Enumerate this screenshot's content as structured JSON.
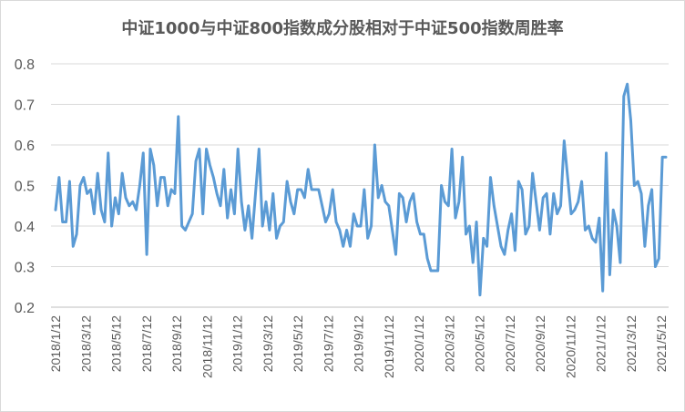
{
  "chart_data": {
    "type": "line",
    "title": "中证1000与中证800指数成分股相对于中证500指数周胜率",
    "xlabel": "",
    "ylabel": "",
    "ylim": [
      0.2,
      0.8
    ],
    "yticks": [
      "0.2",
      "0.3",
      "0.4",
      "0.5",
      "0.6",
      "0.7",
      "0.8"
    ],
    "grid": true,
    "legend": "none",
    "line_color": "#5b9bd5",
    "x_tick_labels": [
      "2018/1/12",
      "2018/3/12",
      "2018/5/12",
      "2018/7/12",
      "2018/9/12",
      "2018/11/12",
      "2019/1/12",
      "2019/3/12",
      "2019/5/12",
      "2019/7/12",
      "2019/9/12",
      "2019/11/12",
      "2020/1/12",
      "2020/3/12",
      "2020/5/12",
      "2020/7/12",
      "2020/9/12",
      "2020/11/12",
      "2021/1/12",
      "2021/3/12",
      "2021/5/12"
    ],
    "series": [
      {
        "name": "",
        "x_start": "2018/1/12",
        "interval": "week",
        "values": [
          0.44,
          0.52,
          0.41,
          0.41,
          0.51,
          0.35,
          0.38,
          0.5,
          0.52,
          0.48,
          0.49,
          0.43,
          0.53,
          0.44,
          0.41,
          0.58,
          0.4,
          0.47,
          0.43,
          0.53,
          0.47,
          0.45,
          0.46,
          0.44,
          0.5,
          0.58,
          0.33,
          0.59,
          0.55,
          0.45,
          0.52,
          0.52,
          0.45,
          0.49,
          0.48,
          0.67,
          0.4,
          0.39,
          0.41,
          0.43,
          0.56,
          0.59,
          0.43,
          0.59,
          0.55,
          0.52,
          0.48,
          0.45,
          0.54,
          0.42,
          0.49,
          0.43,
          0.59,
          0.46,
          0.39,
          0.45,
          0.37,
          0.48,
          0.59,
          0.4,
          0.46,
          0.39,
          0.48,
          0.37,
          0.4,
          0.41,
          0.51,
          0.46,
          0.43,
          0.49,
          0.49,
          0.47,
          0.54,
          0.49,
          0.49,
          0.49,
          0.45,
          0.41,
          0.43,
          0.49,
          0.41,
          0.39,
          0.35,
          0.39,
          0.35,
          0.43,
          0.4,
          0.4,
          0.49,
          0.37,
          0.4,
          0.6,
          0.47,
          0.5,
          0.46,
          0.45,
          0.39,
          0.33,
          0.48,
          0.47,
          0.41,
          0.46,
          0.48,
          0.41,
          0.38,
          0.38,
          0.32,
          0.29,
          0.29,
          0.29,
          0.5,
          0.46,
          0.45,
          0.59,
          0.42,
          0.46,
          0.57,
          0.38,
          0.4,
          0.31,
          0.41,
          0.23,
          0.37,
          0.35,
          0.52,
          0.45,
          0.4,
          0.35,
          0.33,
          0.39,
          0.43,
          0.34,
          0.51,
          0.49,
          0.38,
          0.4,
          0.53,
          0.46,
          0.39,
          0.47,
          0.48,
          0.38,
          0.48,
          0.43,
          0.45,
          0.61,
          0.52,
          0.43,
          0.44,
          0.46,
          0.51,
          0.39,
          0.4,
          0.37,
          0.36,
          0.42,
          0.24,
          0.58,
          0.28,
          0.44,
          0.4,
          0.31,
          0.72,
          0.75,
          0.66,
          0.5,
          0.51,
          0.48,
          0.35,
          0.45,
          0.49,
          0.3,
          0.32,
          0.57,
          0.57
        ]
      }
    ]
  }
}
